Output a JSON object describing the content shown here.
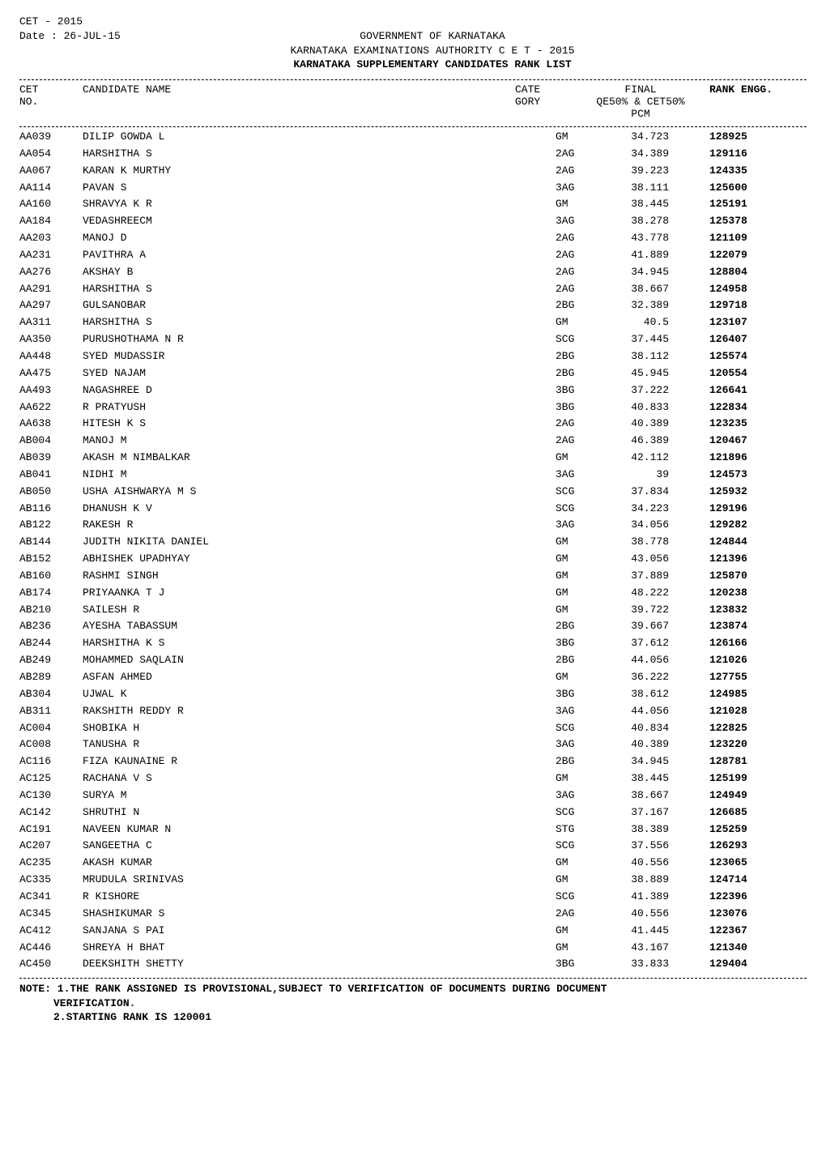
{
  "header": {
    "line1": "CET - 2015",
    "line2": "Date : 26-JUL-15",
    "center1": "GOVERNMENT OF KARNATAKA",
    "center2": "KARNATAKA EXAMINATIONS AUTHORITY C E T - 2015",
    "center3": "KARNATAKA SUPPLEMENTARY CANDIDATES RANK LIST"
  },
  "col": {
    "no_l1": "CET",
    "no_l2": "NO.",
    "name": "CANDIDATE NAME",
    "cate_l1": "CATE",
    "cate_l2": "GORY",
    "final_l1": "FINAL",
    "final_l2": "QE50% & CET50%",
    "final_l3": "PCM",
    "rank": "RANK ENGG."
  },
  "rows": [
    {
      "no": "AA039",
      "name": "DILIP GOWDA L",
      "cate": "GM",
      "score": "34.723",
      "rank": "128925"
    },
    {
      "no": "AA054",
      "name": "HARSHITHA S",
      "cate": "2AG",
      "score": "34.389",
      "rank": "129116"
    },
    {
      "no": "AA067",
      "name": "KARAN K MURTHY",
      "cate": "2AG",
      "score": "39.223",
      "rank": "124335"
    },
    {
      "no": "AA114",
      "name": "PAVAN S",
      "cate": "3AG",
      "score": "38.111",
      "rank": "125600"
    },
    {
      "no": "AA160",
      "name": "SHRAVYA K R",
      "cate": "GM",
      "score": "38.445",
      "rank": "125191"
    },
    {
      "no": "AA184",
      "name": "VEDASHREECM",
      "cate": "3AG",
      "score": "38.278",
      "rank": "125378"
    },
    {
      "no": "AA203",
      "name": "MANOJ D",
      "cate": "2AG",
      "score": "43.778",
      "rank": "121109"
    },
    {
      "no": "AA231",
      "name": "PAVITHRA A",
      "cate": "2AG",
      "score": "41.889",
      "rank": "122079"
    },
    {
      "no": "AA276",
      "name": "AKSHAY B",
      "cate": "2AG",
      "score": "34.945",
      "rank": "128804"
    },
    {
      "no": "AA291",
      "name": "HARSHITHA S",
      "cate": "2AG",
      "score": "38.667",
      "rank": "124958"
    },
    {
      "no": "AA297",
      "name": "GULSANOBAR",
      "cate": "2BG",
      "score": "32.389",
      "rank": "129718"
    },
    {
      "no": "AA311",
      "name": "HARSHITHA S",
      "cate": "GM",
      "score": "40.5",
      "rank": "123107"
    },
    {
      "no": "AA350",
      "name": "PURUSHOTHAMA N R",
      "cate": "SCG",
      "score": "37.445",
      "rank": "126407"
    },
    {
      "no": "AA448",
      "name": "SYED MUDASSIR",
      "cate": "2BG",
      "score": "38.112",
      "rank": "125574"
    },
    {
      "no": "AA475",
      "name": "SYED NAJAM",
      "cate": "2BG",
      "score": "45.945",
      "rank": "120554"
    },
    {
      "no": "AA493",
      "name": "NAGASHREE D",
      "cate": "3BG",
      "score": "37.222",
      "rank": "126641"
    },
    {
      "no": "AA622",
      "name": "R PRATYUSH",
      "cate": "3BG",
      "score": "40.833",
      "rank": "122834"
    },
    {
      "no": "AA638",
      "name": "HITESH K S",
      "cate": "2AG",
      "score": "40.389",
      "rank": "123235"
    },
    {
      "no": "AB004",
      "name": "MANOJ M",
      "cate": "2AG",
      "score": "46.389",
      "rank": "120467"
    },
    {
      "no": "AB039",
      "name": "AKASH M NIMBALKAR",
      "cate": "GM",
      "score": "42.112",
      "rank": "121896"
    },
    {
      "no": "AB041",
      "name": "NIDHI M",
      "cate": "3AG",
      "score": "39",
      "rank": "124573"
    },
    {
      "no": "AB050",
      "name": "USHA AISHWARYA M S",
      "cate": "SCG",
      "score": "37.834",
      "rank": "125932"
    },
    {
      "no": "AB116",
      "name": "DHANUSH K V",
      "cate": "SCG",
      "score": "34.223",
      "rank": "129196"
    },
    {
      "no": "AB122",
      "name": "RAKESH R",
      "cate": "3AG",
      "score": "34.056",
      "rank": "129282"
    },
    {
      "no": "AB144",
      "name": "JUDITH NIKITA DANIEL",
      "cate": "GM",
      "score": "38.778",
      "rank": "124844"
    },
    {
      "no": "AB152",
      "name": "ABHISHEK UPADHYAY",
      "cate": "GM",
      "score": "43.056",
      "rank": "121396"
    },
    {
      "no": "AB160",
      "name": "RASHMI SINGH",
      "cate": "GM",
      "score": "37.889",
      "rank": "125870"
    },
    {
      "no": "AB174",
      "name": "PRIYAANKA T J",
      "cate": "GM",
      "score": "48.222",
      "rank": "120238"
    },
    {
      "no": "AB210",
      "name": "SAILESH R",
      "cate": "GM",
      "score": "39.722",
      "rank": "123832"
    },
    {
      "no": "AB236",
      "name": "AYESHA TABASSUM",
      "cate": "2BG",
      "score": "39.667",
      "rank": "123874"
    },
    {
      "no": "AB244",
      "name": "HARSHITHA  K S",
      "cate": "3BG",
      "score": "37.612",
      "rank": "126166"
    },
    {
      "no": "AB249",
      "name": "MOHAMMED SAQLAIN",
      "cate": "2BG",
      "score": "44.056",
      "rank": "121026"
    },
    {
      "no": "AB289",
      "name": "ASFAN AHMED",
      "cate": "GM",
      "score": "36.222",
      "rank": "127755"
    },
    {
      "no": "AB304",
      "name": "UJWAL K",
      "cate": "3BG",
      "score": "38.612",
      "rank": "124985"
    },
    {
      "no": "AB311",
      "name": "RAKSHITH REDDY R",
      "cate": "3AG",
      "score": "44.056",
      "rank": "121028"
    },
    {
      "no": "AC004",
      "name": "SHOBIKA H",
      "cate": "SCG",
      "score": "40.834",
      "rank": "122825"
    },
    {
      "no": "AC008",
      "name": "TANUSHA R",
      "cate": "3AG",
      "score": "40.389",
      "rank": "123220"
    },
    {
      "no": "AC116",
      "name": "FIZA KAUNAINE R",
      "cate": "2BG",
      "score": "34.945",
      "rank": "128781"
    },
    {
      "no": "AC125",
      "name": "RACHANA V S",
      "cate": "GM",
      "score": "38.445",
      "rank": "125199"
    },
    {
      "no": "AC130",
      "name": "SURYA M",
      "cate": "3AG",
      "score": "38.667",
      "rank": "124949"
    },
    {
      "no": "AC142",
      "name": "SHRUTHI N",
      "cate": "SCG",
      "score": "37.167",
      "rank": "126685"
    },
    {
      "no": "AC191",
      "name": "NAVEEN KUMAR N",
      "cate": "STG",
      "score": "38.389",
      "rank": "125259"
    },
    {
      "no": "AC207",
      "name": "SANGEETHA C",
      "cate": "SCG",
      "score": "37.556",
      "rank": "126293"
    },
    {
      "no": "AC235",
      "name": "AKASH KUMAR",
      "cate": "GM",
      "score": "40.556",
      "rank": "123065"
    },
    {
      "no": "AC335",
      "name": "MRUDULA SRINIVAS",
      "cate": "GM",
      "score": "38.889",
      "rank": "124714"
    },
    {
      "no": "AC341",
      "name": "R KISHORE",
      "cate": "SCG",
      "score": "41.389",
      "rank": "122396"
    },
    {
      "no": "AC345",
      "name": "SHASHIKUMAR S",
      "cate": "2AG",
      "score": "40.556",
      "rank": "123076"
    },
    {
      "no": "AC412",
      "name": "SANJANA S PAI",
      "cate": "GM",
      "score": "41.445",
      "rank": "122367"
    },
    {
      "no": "AC446",
      "name": "SHREYA H BHAT",
      "cate": "GM",
      "score": "43.167",
      "rank": "121340"
    },
    {
      "no": "AC450",
      "name": "DEEKSHITH SHETTY",
      "cate": "3BG",
      "score": "33.833",
      "rank": "129404"
    }
  ],
  "footer": {
    "l1": "NOTE: 1.THE RANK ASSIGNED IS PROVISIONAL,SUBJECT TO VERIFICATION OF DOCUMENTS DURING DOCUMENT",
    "l2": "VERIFICATION.",
    "l3": "2.STARTING RANK IS 120001"
  }
}
